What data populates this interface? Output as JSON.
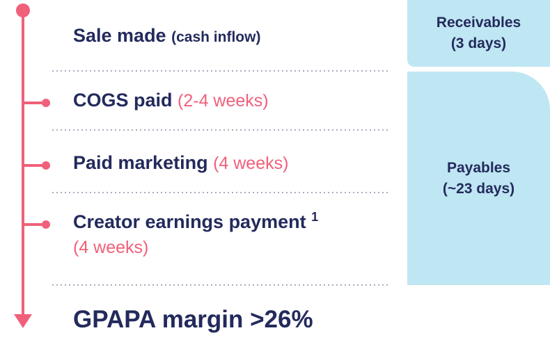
{
  "steps": [
    {
      "label": "Sale made",
      "note": "(cash inflow)"
    },
    {
      "label": "COGS paid",
      "note": "(2-4 weeks)"
    },
    {
      "label": "Paid marketing",
      "note": "(4 weeks)"
    },
    {
      "label": "Creator earnings payment",
      "superscript": "1",
      "note": "(4 weeks)"
    }
  ],
  "result": "GPAPA margin >26%",
  "boxes": [
    {
      "label": "Receivables",
      "detail": "(3 days)"
    },
    {
      "label": "Payables",
      "detail": "(~23 days)"
    }
  ]
}
